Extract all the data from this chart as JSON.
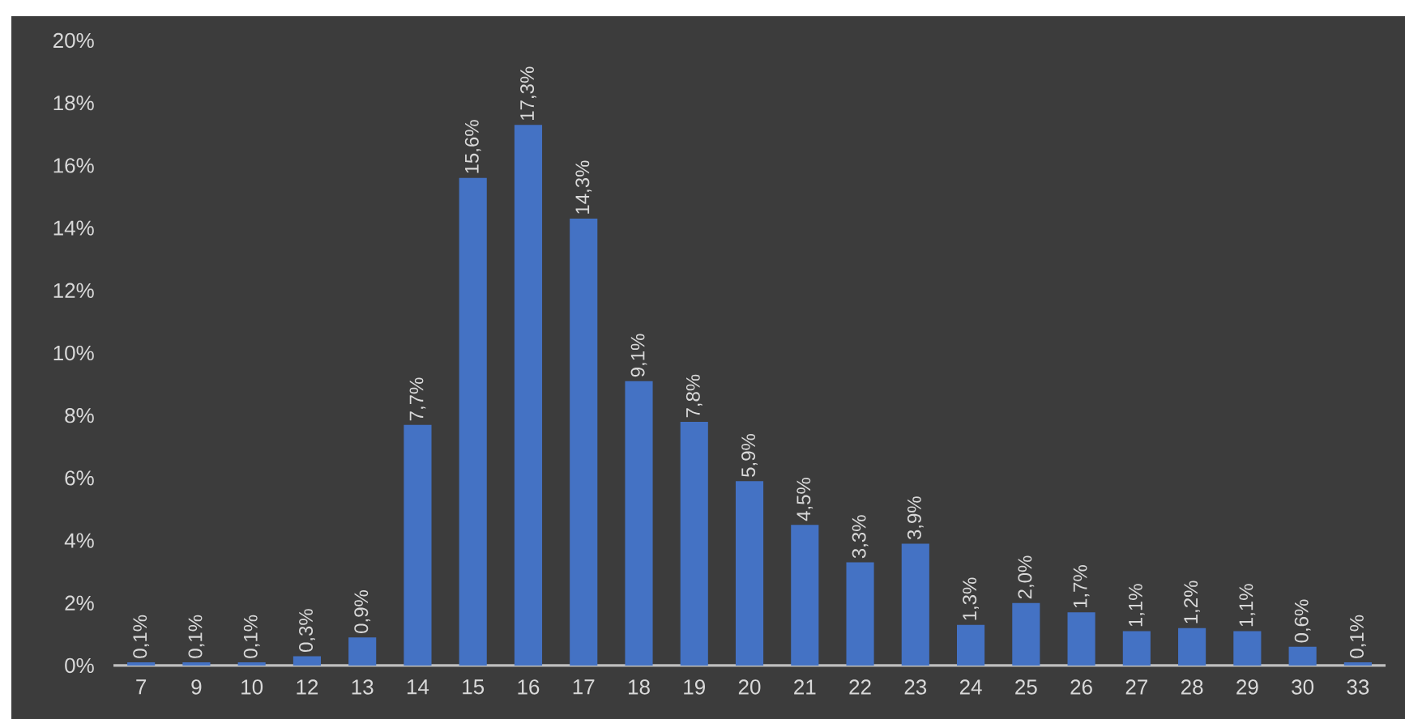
{
  "chart_data": {
    "type": "bar",
    "categories": [
      "7",
      "9",
      "10",
      "12",
      "13",
      "14",
      "15",
      "16",
      "17",
      "18",
      "19",
      "20",
      "21",
      "22",
      "23",
      "24",
      "25",
      "26",
      "27",
      "28",
      "29",
      "30",
      "33"
    ],
    "values": [
      0.1,
      0.1,
      0.1,
      0.3,
      0.9,
      7.7,
      15.6,
      17.3,
      14.3,
      9.1,
      7.8,
      5.9,
      4.5,
      3.3,
      3.9,
      1.3,
      2.0,
      1.7,
      1.1,
      1.2,
      1.1,
      0.6,
      0.1
    ],
    "value_labels": [
      "0,1%",
      "0,1%",
      "0,1%",
      "0,3%",
      "0,9%",
      "7,7%",
      "15,6%",
      "17,3%",
      "14,3%",
      "9,1%",
      "7,8%",
      "5,9%",
      "4,5%",
      "3,3%",
      "3,9%",
      "1,3%",
      "2,0%",
      "1,7%",
      "1,1%",
      "1,2%",
      "1,1%",
      "0,6%",
      "0,1%"
    ],
    "color": "#4472c4",
    "ylim": [
      0,
      20
    ],
    "yticks": [
      {
        "value": 0,
        "label": "0%"
      },
      {
        "value": 2,
        "label": "2%"
      },
      {
        "value": 4,
        "label": "4%"
      },
      {
        "value": 6,
        "label": "6%"
      },
      {
        "value": 8,
        "label": "8%"
      },
      {
        "value": 10,
        "label": "10%"
      },
      {
        "value": 12,
        "label": "12%"
      },
      {
        "value": 14,
        "label": "14%"
      },
      {
        "value": 16,
        "label": "16%"
      },
      {
        "value": 18,
        "label": "18%"
      },
      {
        "value": 20,
        "label": "20%"
      }
    ]
  }
}
